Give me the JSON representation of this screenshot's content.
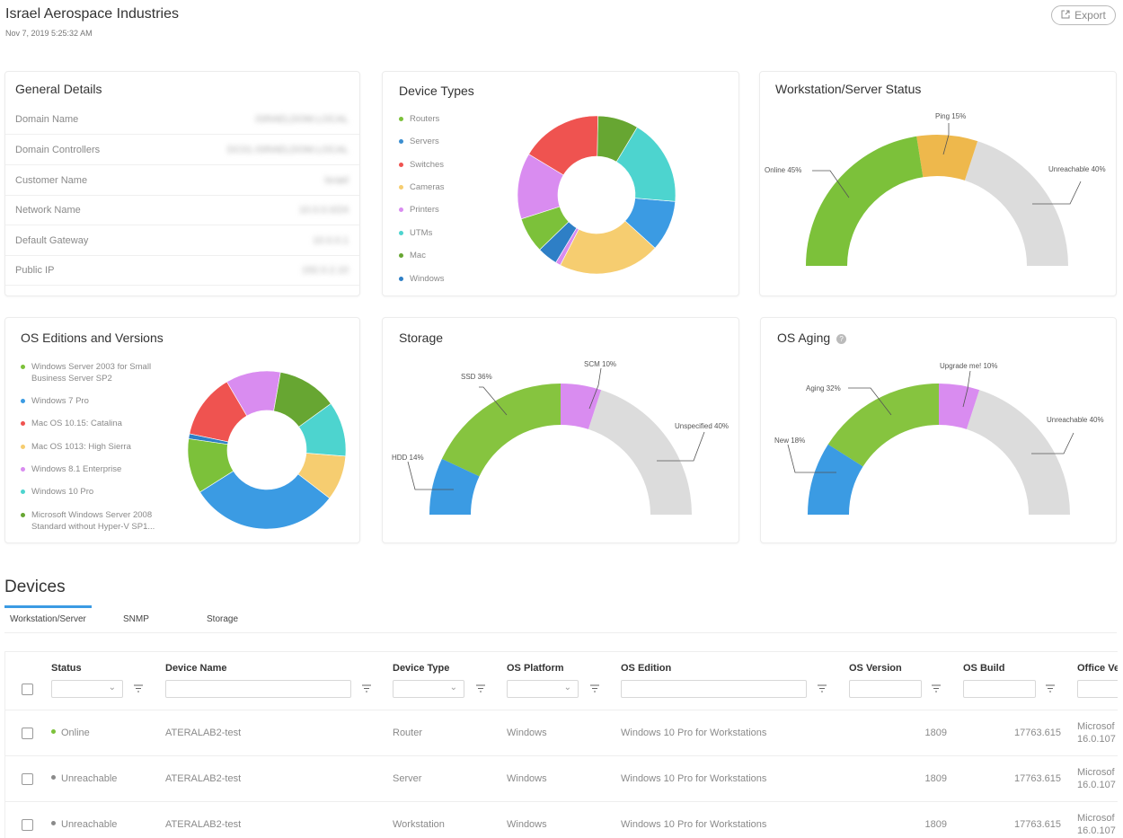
{
  "header": {
    "title": "Israel Aerospace Industries",
    "date": "Nov 7, 2019 5:25:32 AM",
    "export_label": "Export"
  },
  "general_details": {
    "title": "General Details",
    "rows": [
      {
        "label": "Domain Name",
        "value": "ISRAELDOM.LOCAL"
      },
      {
        "label": "Domain Controllers",
        "value": "DC01.ISRAELDOM.LOCAL"
      },
      {
        "label": "Customer Name",
        "value": "Israel"
      },
      {
        "label": "Network Name",
        "value": "10.0.0.0/24"
      },
      {
        "label": "Default Gateway",
        "value": "10.0.0.1"
      },
      {
        "label": "Public IP",
        "value": "192.0.2.10"
      }
    ]
  },
  "device_types": {
    "title": "Device Types",
    "legend": [
      {
        "label": "Routers",
        "color": "#7cc13a"
      },
      {
        "label": "Servers",
        "color": "#3b8ed0"
      },
      {
        "label": "Switches",
        "color": "#ef5350"
      },
      {
        "label": "Cameras",
        "color": "#f6cd70"
      },
      {
        "label": "Printers",
        "color": "#d98cf0"
      },
      {
        "label": "UTMs",
        "color": "#4dd4cf"
      },
      {
        "label": "Mac",
        "color": "#67a632"
      },
      {
        "label": "Windows",
        "color": "#2e7fc6"
      }
    ]
  },
  "ws_status": {
    "title": "Workstation/Server Status",
    "labels": {
      "online": "Online 45%",
      "ping": "Ping 15%",
      "unreachable": "Unreachable 40%"
    }
  },
  "os_editions": {
    "title": "OS Editions and Versions",
    "legend": [
      {
        "label": "Windows Server 2003 for Small Business Server SP2",
        "color": "#7cc13a"
      },
      {
        "label": "Windows 7 Pro",
        "color": "#3b9be3"
      },
      {
        "label": "Mac OS 10.15: Catalina",
        "color": "#ef5350"
      },
      {
        "label": "Mac OS 1013: High Sierra",
        "color": "#f6cd70"
      },
      {
        "label": "Windows 8.1 Enterprise",
        "color": "#d98cf0"
      },
      {
        "label": "Windows 10 Pro",
        "color": "#4dd4cf"
      },
      {
        "label": "Microsoft  Windows Server  2008 Standard without Hyper-V SP1...",
        "color": "#67a632"
      }
    ]
  },
  "storage": {
    "title": "Storage",
    "labels": {
      "hdd": "HDD 14%",
      "ssd": "SSD 36%",
      "scm": "SCM 10%",
      "unspecified": "Unspecified 40%"
    }
  },
  "os_aging": {
    "title": "OS Aging",
    "labels": {
      "new": "New 18%",
      "aging": "Aging 32%",
      "upgrade": "Upgrade me! 10%",
      "unreachable": "Unreachable 40%"
    }
  },
  "devices": {
    "title": "Devices",
    "tabs": [
      "Workstation/Server",
      "SNMP",
      "Storage"
    ],
    "columns": [
      "Status",
      "Device Name",
      "Device Type",
      "OS Platform",
      "OS Edition",
      "OS Version",
      "OS Build",
      "Office Ve"
    ],
    "rows": [
      {
        "status": "Online",
        "status_color": "#7cc13a",
        "name": "ATERALAB2-test",
        "type": "Router",
        "platform": "Windows",
        "edition": "Windows 10 Pro for Workstations",
        "version": "1809",
        "build": "17763.615",
        "office1": "Microsof",
        "office2": "16.0.107"
      },
      {
        "status": "Unreachable",
        "status_color": "#8a8a8a",
        "name": "ATERALAB2-test",
        "type": "Server",
        "platform": "Windows",
        "edition": "Windows 10 Pro for Workstations",
        "version": "1809",
        "build": "17763.615",
        "office1": "Microsof",
        "office2": "16.0.107"
      },
      {
        "status": "Unreachable",
        "status_color": "#8a8a8a",
        "name": "ATERALAB2-test",
        "type": "Workstation",
        "platform": "Windows",
        "edition": "Windows 10 Pro for Workstations",
        "version": "1809",
        "build": "17763.615",
        "office1": "Microsof",
        "office2": "16.0.107"
      }
    ]
  },
  "chart_data": [
    {
      "type": "pie",
      "title": "Device Types",
      "categories": [
        "Switches",
        "Mac",
        "UTMs",
        "Servers",
        "Cameras",
        "Printers",
        "Windows",
        "Routers",
        "Printers"
      ],
      "values": [
        16,
        8,
        17,
        10,
        20,
        1,
        4,
        7,
        13
      ],
      "colors": [
        "#ef5350",
        "#67a632",
        "#4dd4cf",
        "#3b9be3",
        "#f6cd70",
        "#d98cf0",
        "#2e7fc6",
        "#7cc13a",
        "#d98cf0"
      ]
    },
    {
      "type": "pie",
      "title": "Workstation/Server Status",
      "categories": [
        "Online",
        "Ping",
        "Unreachable"
      ],
      "values": [
        45,
        15,
        40
      ],
      "colors": [
        "#7cc13a",
        "#eeb84c",
        "#dcdcdc"
      ]
    },
    {
      "type": "pie",
      "title": "OS Editions and Versions",
      "categories": [
        "Microsoft  Windows Server  2008 Standard without Hyper-V SP1...",
        "Windows 10 Pro",
        "Mac OS 1013: High Sierra",
        "Windows 7 Pro",
        "Windows Server 2003 for Small Business Server SP2",
        "Windows 7 Pro",
        "Mac OS 10.15: Catalina",
        "Windows 8.1 Enterprise"
      ],
      "values": [
        12,
        11,
        9,
        30,
        11,
        1,
        13,
        11
      ],
      "colors": [
        "#67a632",
        "#4dd4cf",
        "#f6cd70",
        "#3b9be3",
        "#7cc13a",
        "#2e7fc6",
        "#ef5350",
        "#d98cf0"
      ]
    },
    {
      "type": "pie",
      "title": "Storage",
      "categories": [
        "HDD",
        "SSD",
        "SCM",
        "Unspecified"
      ],
      "values": [
        14,
        36,
        10,
        40
      ],
      "colors": [
        "#3b9be3",
        "#86c43f",
        "#d98cf0",
        "#dcdcdc"
      ]
    },
    {
      "type": "pie",
      "title": "OS Aging",
      "categories": [
        "New",
        "Aging",
        "Upgrade me!",
        "Unreachable"
      ],
      "values": [
        18,
        32,
        10,
        40
      ],
      "colors": [
        "#3b9be3",
        "#86c43f",
        "#d98cf0",
        "#dcdcdc"
      ]
    }
  ]
}
